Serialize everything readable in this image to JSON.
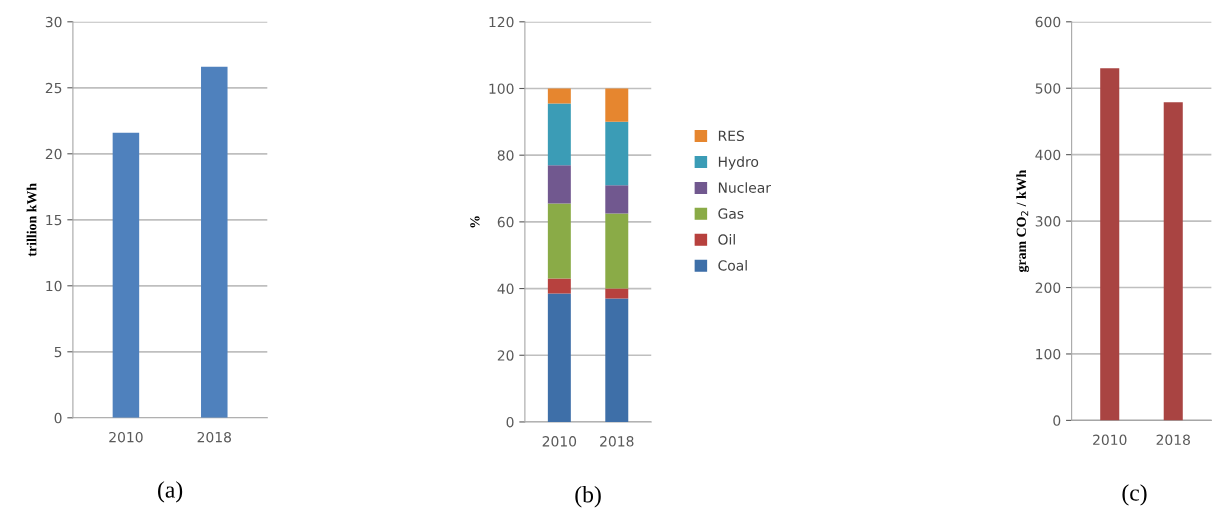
{
  "chart_data": [
    {
      "type": "bar",
      "categories": [
        "2010",
        "2018"
      ],
      "values": [
        21.6,
        26.6
      ],
      "color": "#4f81bd",
      "ylabel": "trillion kWh",
      "ylim": [
        0,
        30
      ],
      "yticks": [
        0,
        5,
        10,
        15,
        20,
        25,
        30
      ],
      "grid": "y",
      "legend": false,
      "annotations": [
        "(a)"
      ]
    },
    {
      "type": "bar",
      "stacked": true,
      "categories": [
        "2010",
        "2018"
      ],
      "ylabel": "%",
      "ylim": [
        0,
        120
      ],
      "yticks": [
        0,
        20,
        40,
        60,
        80,
        100,
        120
      ],
      "grid": "y",
      "legend": "right",
      "annotations": [
        "(b)"
      ],
      "series": [
        {
          "name": "Coal",
          "color": "#3e6fa8",
          "values": [
            38.5,
            37
          ]
        },
        {
          "name": "Oil",
          "color": "#b7413e",
          "values": [
            4.5,
            3
          ]
        },
        {
          "name": "Gas",
          "color": "#8aab47",
          "values": [
            22.5,
            22.5
          ]
        },
        {
          "name": "Nuclear",
          "color": "#71588f",
          "values": [
            11.5,
            8.5
          ]
        },
        {
          "name": "Hydro",
          "color": "#3b9cb6",
          "values": [
            18.5,
            19
          ]
        },
        {
          "name": "RES",
          "color": "#e6862f",
          "values": [
            4.5,
            10
          ]
        }
      ]
    },
    {
      "type": "bar",
      "categories": [
        "2010",
        "2018"
      ],
      "values": [
        530,
        479
      ],
      "color": "#a94442",
      "ylabel": "gram CO$_{2}$ / kWh",
      "ylim": [
        0,
        600
      ],
      "yticks": [
        0,
        100,
        200,
        300,
        400,
        500,
        600
      ],
      "grid": "y",
      "legend": false,
      "annotations": [
        "(c)"
      ]
    }
  ]
}
